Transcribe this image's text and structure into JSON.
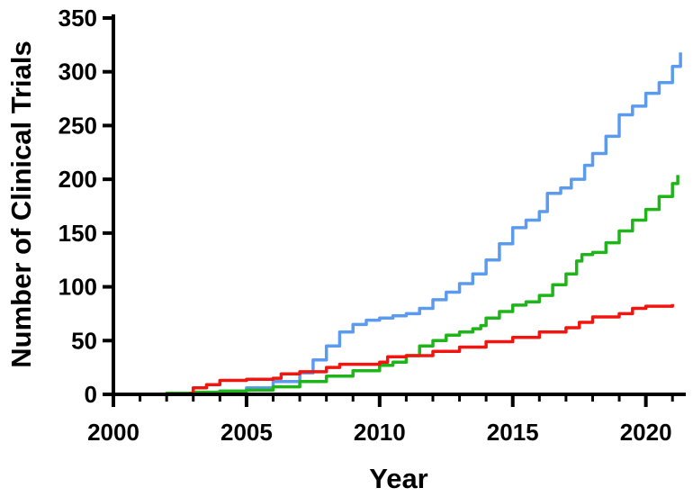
{
  "chart_data": {
    "type": "line",
    "xlabel": "Year",
    "ylabel": "Number of Clinical Trials",
    "xlim": [
      2000,
      2021.5
    ],
    "ylim": [
      0,
      350
    ],
    "xticks": [
      2000,
      2005,
      2010,
      2015,
      2020
    ],
    "yticks": [
      0,
      50,
      100,
      150,
      200,
      250,
      300,
      350
    ],
    "legend": "none",
    "grid": false,
    "series": [
      {
        "color": "#5b9bef",
        "points": [
          [
            2000,
            0
          ],
          [
            2002,
            0.5
          ],
          [
            2003,
            1
          ],
          [
            2004,
            3
          ],
          [
            2005,
            6
          ],
          [
            2006,
            12
          ],
          [
            2007,
            20
          ],
          [
            2007.5,
            32
          ],
          [
            2008,
            45
          ],
          [
            2008.5,
            58
          ],
          [
            2009,
            65
          ],
          [
            2009.5,
            69
          ],
          [
            2010,
            71
          ],
          [
            2010.5,
            73
          ],
          [
            2011,
            75
          ],
          [
            2011.5,
            80
          ],
          [
            2012,
            88
          ],
          [
            2012.5,
            95
          ],
          [
            2013,
            103
          ],
          [
            2013.5,
            112
          ],
          [
            2014,
            125
          ],
          [
            2014.5,
            140
          ],
          [
            2015,
            155
          ],
          [
            2015.5,
            162
          ],
          [
            2016,
            170
          ],
          [
            2016.3,
            187
          ],
          [
            2016.8,
            192
          ],
          [
            2017.2,
            200
          ],
          [
            2017.7,
            213
          ],
          [
            2018,
            224
          ],
          [
            2018.5,
            240
          ],
          [
            2019,
            260
          ],
          [
            2019.5,
            268
          ],
          [
            2020,
            280
          ],
          [
            2020.5,
            290
          ],
          [
            2021,
            305
          ],
          [
            2021.3,
            318
          ]
        ]
      },
      {
        "color": "#1fb51a",
        "points": [
          [
            2000,
            0
          ],
          [
            2002,
            1
          ],
          [
            2003,
            2
          ],
          [
            2004,
            3
          ],
          [
            2005,
            4
          ],
          [
            2006,
            7
          ],
          [
            2007,
            12
          ],
          [
            2008,
            17
          ],
          [
            2009,
            22
          ],
          [
            2010,
            27
          ],
          [
            2010.5,
            30
          ],
          [
            2011,
            36
          ],
          [
            2011.5,
            45
          ],
          [
            2012,
            50
          ],
          [
            2012.5,
            55
          ],
          [
            2013,
            58
          ],
          [
            2013.5,
            61
          ],
          [
            2013.8,
            64
          ],
          [
            2014,
            71
          ],
          [
            2014.5,
            77
          ],
          [
            2015,
            83
          ],
          [
            2015.5,
            86
          ],
          [
            2016,
            92
          ],
          [
            2016.5,
            102
          ],
          [
            2017,
            112
          ],
          [
            2017.4,
            124
          ],
          [
            2017.6,
            130
          ],
          [
            2018,
            132
          ],
          [
            2018.5,
            141
          ],
          [
            2019,
            152
          ],
          [
            2019.5,
            162
          ],
          [
            2020,
            172
          ],
          [
            2020.5,
            184
          ],
          [
            2021,
            196
          ],
          [
            2021.2,
            204
          ]
        ]
      },
      {
        "color": "#f2150f",
        "points": [
          [
            2000,
            0
          ],
          [
            2002.9,
            1
          ],
          [
            2003,
            6
          ],
          [
            2003.5,
            9
          ],
          [
            2004,
            13
          ],
          [
            2005,
            14
          ],
          [
            2006,
            15
          ],
          [
            2006.3,
            19
          ],
          [
            2007,
            21
          ],
          [
            2008,
            25
          ],
          [
            2008.5,
            28
          ],
          [
            2009,
            28
          ],
          [
            2010,
            30
          ],
          [
            2010.3,
            35
          ],
          [
            2011,
            36
          ],
          [
            2012,
            40
          ],
          [
            2013,
            44
          ],
          [
            2014,
            49
          ],
          [
            2015,
            53
          ],
          [
            2016,
            58
          ],
          [
            2017,
            62
          ],
          [
            2017.5,
            67
          ],
          [
            2018,
            72
          ],
          [
            2019,
            75
          ],
          [
            2019.5,
            80
          ],
          [
            2020,
            82
          ],
          [
            2021,
            84
          ]
        ]
      }
    ]
  }
}
